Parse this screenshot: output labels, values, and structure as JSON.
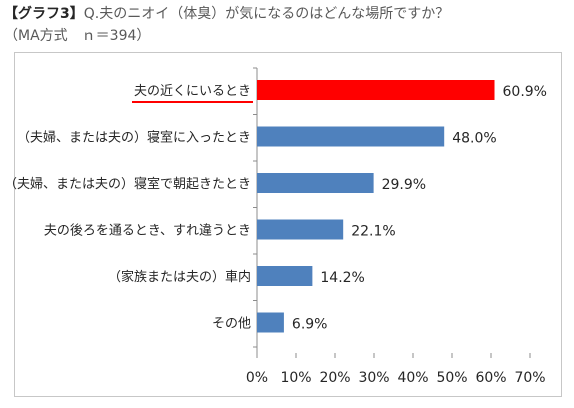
{
  "title": {
    "prefix": "【グラフ3】",
    "question": "Q.夫のニオイ（体臭）が気になるのはどんな場所ですか？"
  },
  "subtitle": "（MA方式　ｎ＝394）",
  "colors": {
    "bar_default": "#4f81bd",
    "bar_highlight": "#ff0000",
    "underline": "#ff0000"
  },
  "chart_data": {
    "type": "bar",
    "orientation": "horizontal",
    "categories": [
      "夫の近くにいるとき",
      "（夫婦、または夫の）寝室に入ったとき",
      "（夫婦、または夫の）寝室で朝起きたとき",
      "夫の後ろを通るとき、すれ違うとき",
      "（家族または夫の）車内",
      "その他"
    ],
    "values": [
      60.9,
      48.0,
      29.9,
      22.1,
      14.2,
      6.9
    ],
    "value_labels": [
      "60.9%",
      "48.0%",
      "29.9%",
      "22.1%",
      "14.2%",
      "6.9%"
    ],
    "highlight_index": 0,
    "xlim": [
      0,
      70
    ],
    "x_ticks": [
      0,
      10,
      20,
      30,
      40,
      50,
      60,
      70
    ],
    "x_tick_labels": [
      "0%",
      "10%",
      "20%",
      "30%",
      "40%",
      "50%",
      "60%",
      "70%"
    ],
    "grid": false
  }
}
